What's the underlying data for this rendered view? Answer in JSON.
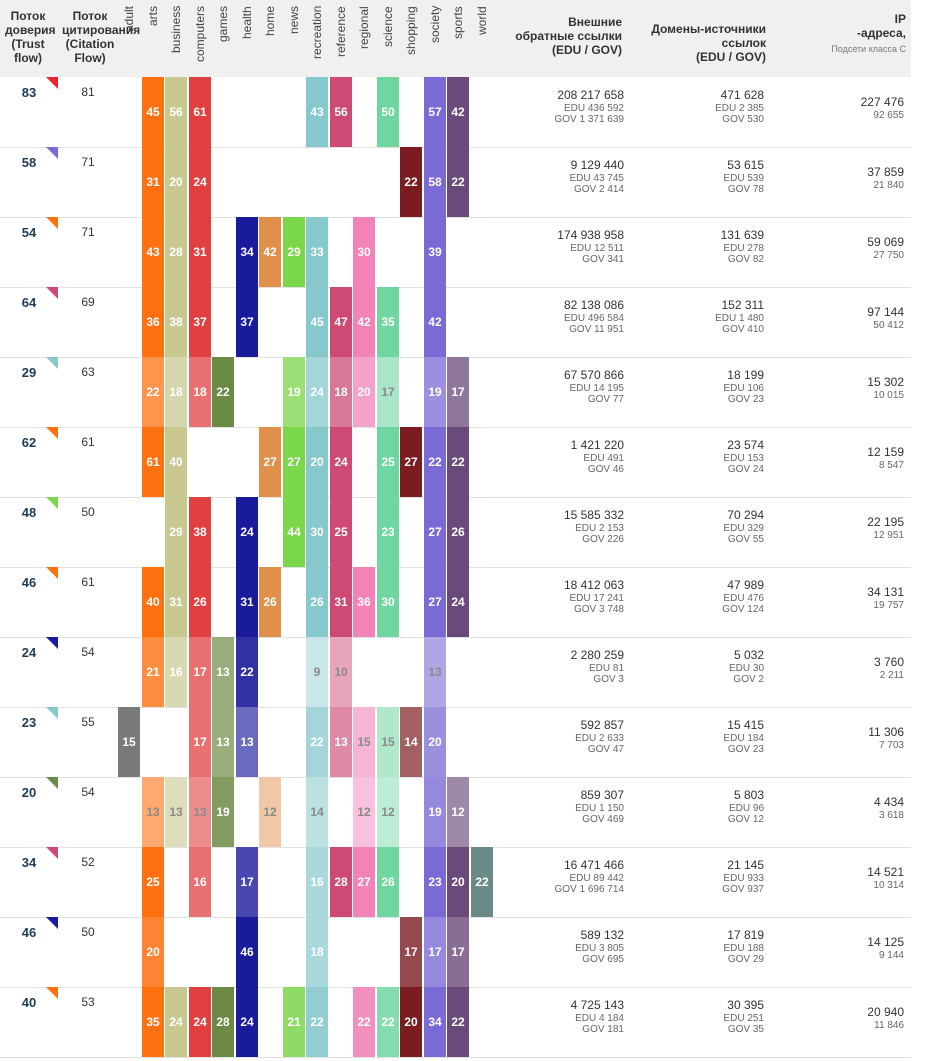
{
  "headers": {
    "trust_flow": [
      "Поток",
      "доверия",
      "(Trust",
      "flow)"
    ],
    "citation_flow": [
      "Поток",
      "цитирования",
      "(Citation",
      "Flow)"
    ],
    "backlinks": [
      "Внешние",
      "обратные ссылки",
      "(EDU / GOV)"
    ],
    "ref_domains": [
      "Домены-источники",
      "ссылок",
      "(EDU / GOV)"
    ],
    "ip": [
      "IP",
      "-адреса,"
    ],
    "ip_sub": "Подсети класса C",
    "categories": [
      "adult",
      "arts",
      "business",
      "computers",
      "games",
      "health",
      "home",
      "news",
      "recreation",
      "reference",
      "regional",
      "science",
      "shopping",
      "society",
      "sports",
      "world"
    ]
  },
  "colors": {
    "adult": "#7a7a7a",
    "arts": "#ff7010",
    "business": "#c8c890",
    "computers": "#e04040",
    "games": "#6b8a44",
    "health": "#1a1a9c",
    "home": "#e0904a",
    "news": "#7ad64a",
    "recreation": "#86c8cc",
    "reference": "#cc4a74",
    "regional": "#f283b8",
    "science": "#6fd6a2",
    "shopping": "#7a1c20",
    "society": "#7a6ad6",
    "sports": "#6a4a7a",
    "world": "#6a8a88"
  },
  "rows": [
    {
      "tf": "83",
      "cf": "81",
      "tri": "#e8242f",
      "cells": [
        [
          "arts",
          "45",
          1
        ],
        [
          "business",
          "56",
          1
        ],
        [
          "computers",
          "61",
          1
        ],
        [
          "recreation",
          "43",
          1
        ],
        [
          "reference",
          "56",
          1
        ],
        [
          "science",
          "50",
          1
        ],
        [
          "society",
          "57",
          1
        ],
        [
          "sports",
          "42",
          1
        ]
      ],
      "bl": "208 217 658",
      "bl_edu": "EDU 436 592",
      "bl_gov": "GOV 1 371 639",
      "rd": "471 628",
      "rd_edu": "EDU 2 385",
      "rd_gov": "GOV 530",
      "ip": "227 476",
      "ip_c": "92 655"
    },
    {
      "tf": "58",
      "cf": "71",
      "tri": "#7a6ad6",
      "cells": [
        [
          "arts",
          "31",
          1
        ],
        [
          "business",
          "20",
          1
        ],
        [
          "computers",
          "24",
          1
        ],
        [
          "shopping",
          "22",
          1
        ],
        [
          "society",
          "58",
          1
        ],
        [
          "sports",
          "22",
          1
        ]
      ],
      "bl": "9 129 440",
      "bl_edu": "EDU 43 745",
      "bl_gov": "GOV 2 414",
      "rd": "53 615",
      "rd_edu": "EDU 539",
      "rd_gov": "GOV 78",
      "ip": "37 859",
      "ip_c": "21 840"
    },
    {
      "tf": "54",
      "cf": "71",
      "tri": "#ff7010",
      "cells": [
        [
          "arts",
          "43",
          1
        ],
        [
          "business",
          "28",
          1
        ],
        [
          "computers",
          "31",
          1
        ],
        [
          "health",
          "34",
          1
        ],
        [
          "home",
          "42",
          1
        ],
        [
          "news",
          "29",
          1
        ],
        [
          "recreation",
          "33",
          1
        ],
        [
          "regional",
          "30",
          1
        ],
        [
          "society",
          "39",
          1
        ]
      ],
      "bl": "174 938 958",
      "bl_edu": "EDU 12 511",
      "bl_gov": "GOV 341",
      "rd": "131 639",
      "rd_edu": "EDU 278",
      "rd_gov": "GOV 82",
      "ip": "59 069",
      "ip_c": "27 750"
    },
    {
      "tf": "64",
      "cf": "69",
      "tri": "#cc4a74",
      "cells": [
        [
          "arts",
          "36",
          1
        ],
        [
          "business",
          "38",
          1
        ],
        [
          "computers",
          "37",
          1
        ],
        [
          "health",
          "37",
          1
        ],
        [
          "recreation",
          "45",
          1
        ],
        [
          "reference",
          "47",
          1
        ],
        [
          "regional",
          "42",
          1
        ],
        [
          "science",
          "35",
          1
        ],
        [
          "society",
          "42",
          1
        ]
      ],
      "bl": "82 138 086",
      "bl_edu": "EDU 496 584",
      "bl_gov": "GOV 11 951",
      "rd": "152 311",
      "rd_edu": "EDU 1 480",
      "rd_gov": "GOV 410",
      "ip": "97 144",
      "ip_c": "50 412"
    },
    {
      "tf": "29",
      "cf": "63",
      "tri": "#86c8cc",
      "cells": [
        [
          "arts",
          "22",
          0.75
        ],
        [
          "business",
          "18",
          0.75
        ],
        [
          "computers",
          "18",
          0.75
        ],
        [
          "games",
          "22",
          1
        ],
        [
          "news",
          "19",
          0.75
        ],
        [
          "recreation",
          "24",
          0.75
        ],
        [
          "reference",
          "18",
          0.75
        ],
        [
          "regional",
          "20",
          0.75
        ],
        [
          "science",
          "17",
          0.6
        ],
        [
          "society",
          "19",
          0.75
        ],
        [
          "sports",
          "17",
          0.75
        ]
      ],
      "bl": "67 570 866",
      "bl_edu": "EDU 14 195",
      "bl_gov": "GOV 77",
      "rd": "18 199",
      "rd_edu": "EDU 106",
      "rd_gov": "GOV 23",
      "ip": "15 302",
      "ip_c": "10 015"
    },
    {
      "tf": "62",
      "cf": "61",
      "tri": "#ff7010",
      "cells": [
        [
          "arts",
          "61",
          1
        ],
        [
          "business",
          "40",
          1
        ],
        [
          "home",
          "27",
          1
        ],
        [
          "news",
          "27",
          1
        ],
        [
          "recreation",
          "20",
          1
        ],
        [
          "reference",
          "24",
          1
        ],
        [
          "science",
          "25",
          1
        ],
        [
          "shopping",
          "27",
          1
        ],
        [
          "society",
          "22",
          1
        ],
        [
          "sports",
          "22",
          1
        ]
      ],
      "bl": "1 421 220",
      "bl_edu": "EDU 491",
      "bl_gov": "GOV 46",
      "rd": "23 574",
      "rd_edu": "EDU 153",
      "rd_gov": "GOV 24",
      "ip": "12 159",
      "ip_c": "8 547"
    },
    {
      "tf": "48",
      "cf": "50",
      "tri": "#7ad64a",
      "cells": [
        [
          "business",
          "29",
          1
        ],
        [
          "computers",
          "38",
          1
        ],
        [
          "health",
          "24",
          1
        ],
        [
          "news",
          "44",
          1
        ],
        [
          "recreation",
          "30",
          1
        ],
        [
          "reference",
          "25",
          1
        ],
        [
          "science",
          "23",
          1
        ],
        [
          "society",
          "27",
          1
        ],
        [
          "sports",
          "26",
          1
        ]
      ],
      "bl": "15 585 332",
      "bl_edu": "EDU 2 153",
      "bl_gov": "GOV 226",
      "rd": "70 294",
      "rd_edu": "EDU 329",
      "rd_gov": "GOV 55",
      "ip": "22 195",
      "ip_c": "12 951"
    },
    {
      "tf": "46",
      "cf": "61",
      "tri": "#ff7010",
      "cells": [
        [
          "arts",
          "40",
          1
        ],
        [
          "business",
          "31",
          1
        ],
        [
          "computers",
          "26",
          1
        ],
        [
          "health",
          "31",
          1
        ],
        [
          "home",
          "26",
          1
        ],
        [
          "recreation",
          "26",
          1
        ],
        [
          "reference",
          "31",
          1
        ],
        [
          "regional",
          "36",
          1
        ],
        [
          "science",
          "30",
          1
        ],
        [
          "society",
          "27",
          1
        ],
        [
          "sports",
          "24",
          1
        ]
      ],
      "bl": "18 412 063",
      "bl_edu": "EDU 17 241",
      "bl_gov": "GOV 3 748",
      "rd": "47 989",
      "rd_edu": "EDU 476",
      "rd_gov": "GOV 124",
      "ip": "34 131",
      "ip_c": "19 757"
    },
    {
      "tf": "24",
      "cf": "54",
      "tri": "#1a1a9c",
      "cells": [
        [
          "arts",
          "21",
          0.8
        ],
        [
          "business",
          "16",
          0.7
        ],
        [
          "computers",
          "17",
          0.75
        ],
        [
          "games",
          "13",
          0.7
        ],
        [
          "health",
          "22",
          0.9
        ],
        [
          "recreation",
          "9",
          0.45
        ],
        [
          "reference",
          "10",
          0.5
        ],
        [
          "society",
          "13",
          0.6
        ]
      ],
      "bl": "2 280 259",
      "bl_edu": "EDU 81",
      "bl_gov": "GOV 3",
      "rd": "5 032",
      "rd_edu": "EDU 30",
      "rd_gov": "GOV 2",
      "ip": "3 760",
      "ip_c": "2 211"
    },
    {
      "tf": "23",
      "cf": "55",
      "tri": "#86c8cc",
      "cells": [
        [
          "adult",
          "15",
          1
        ],
        [
          "computers",
          "17",
          0.75
        ],
        [
          "games",
          "13",
          0.7
        ],
        [
          "health",
          "13",
          0.65
        ],
        [
          "recreation",
          "22",
          0.75
        ],
        [
          "reference",
          "13",
          0.65
        ],
        [
          "regional",
          "15",
          0.6
        ],
        [
          "science",
          "15",
          0.55
        ],
        [
          "shopping",
          "14",
          0.7
        ],
        [
          "society",
          "20",
          0.75
        ]
      ],
      "bl": "592 857",
      "bl_edu": "EDU 2 633",
      "bl_gov": "GOV 47",
      "rd": "15 415",
      "rd_edu": "EDU 184",
      "rd_gov": "GOV 23",
      "ip": "11 306",
      "ip_c": "7 703"
    },
    {
      "tf": "20",
      "cf": "54",
      "tri": "#6b8a44",
      "cells": [
        [
          "arts",
          "13",
          0.6
        ],
        [
          "business",
          "13",
          0.6
        ],
        [
          "computers",
          "13",
          0.6
        ],
        [
          "games",
          "19",
          0.85
        ],
        [
          "home",
          "12",
          0.5
        ],
        [
          "recreation",
          "14",
          0.55
        ],
        [
          "regional",
          "12",
          0.5
        ],
        [
          "science",
          "12",
          0.45
        ],
        [
          "society",
          "19",
          0.8
        ],
        [
          "sports",
          "12",
          0.65
        ]
      ],
      "bl": "859 307",
      "bl_edu": "EDU 1 150",
      "bl_gov": "GOV 469",
      "rd": "5 803",
      "rd_edu": "EDU 96",
      "rd_gov": "GOV 12",
      "ip": "4 434",
      "ip_c": "3 618"
    },
    {
      "tf": "34",
      "cf": "52",
      "tri": "#cc4a74",
      "cells": [
        [
          "arts",
          "25",
          1
        ],
        [
          "computers",
          "16",
          0.75
        ],
        [
          "health",
          "17",
          0.8
        ],
        [
          "recreation",
          "16",
          0.7
        ],
        [
          "reference",
          "28",
          1
        ],
        [
          "regional",
          "27",
          1
        ],
        [
          "science",
          "26",
          1
        ],
        [
          "society",
          "23",
          1
        ],
        [
          "sports",
          "20",
          1
        ],
        [
          "world",
          "22",
          1
        ]
      ],
      "bl": "16 471 466",
      "bl_edu": "EDU 89 442",
      "bl_gov": "GOV 1 696 714",
      "rd": "21 145",
      "rd_edu": "EDU 933",
      "rd_gov": "GOV 937",
      "ip": "14 521",
      "ip_c": "10 314"
    },
    {
      "tf": "46",
      "cf": "50",
      "tri": "#1a1a9c",
      "cells": [
        [
          "arts",
          "20",
          0.85
        ],
        [
          "health",
          "46",
          1
        ],
        [
          "recreation",
          "18",
          0.7
        ],
        [
          "shopping",
          "17",
          0.8
        ],
        [
          "society",
          "17",
          0.8
        ],
        [
          "sports",
          "17",
          0.8
        ]
      ],
      "bl": "589 132",
      "bl_edu": "EDU 3 805",
      "bl_gov": "GOV 695",
      "rd": "17 819",
      "rd_edu": "EDU 188",
      "rd_gov": "GOV 29",
      "ip": "14 125",
      "ip_c": "9 144"
    },
    {
      "tf": "40",
      "cf": "53",
      "tri": "#ff7010",
      "cells": [
        [
          "arts",
          "35",
          1
        ],
        [
          "business",
          "24",
          1
        ],
        [
          "computers",
          "24",
          1
        ],
        [
          "games",
          "28",
          1
        ],
        [
          "health",
          "24",
          1
        ],
        [
          "news",
          "21",
          0.85
        ],
        [
          "recreation",
          "22",
          0.9
        ],
        [
          "regional",
          "22",
          0.9
        ],
        [
          "science",
          "22",
          0.85
        ],
        [
          "shopping",
          "20",
          1
        ],
        [
          "society",
          "34",
          1
        ],
        [
          "sports",
          "22",
          1
        ]
      ],
      "bl": "4 725 143",
      "bl_edu": "EDU 4 184",
      "bl_gov": "GOV 181",
      "rd": "30 395",
      "rd_edu": "EDU 251",
      "rd_gov": "GOV 35",
      "ip": "20 940",
      "ip_c": "11 846"
    }
  ]
}
